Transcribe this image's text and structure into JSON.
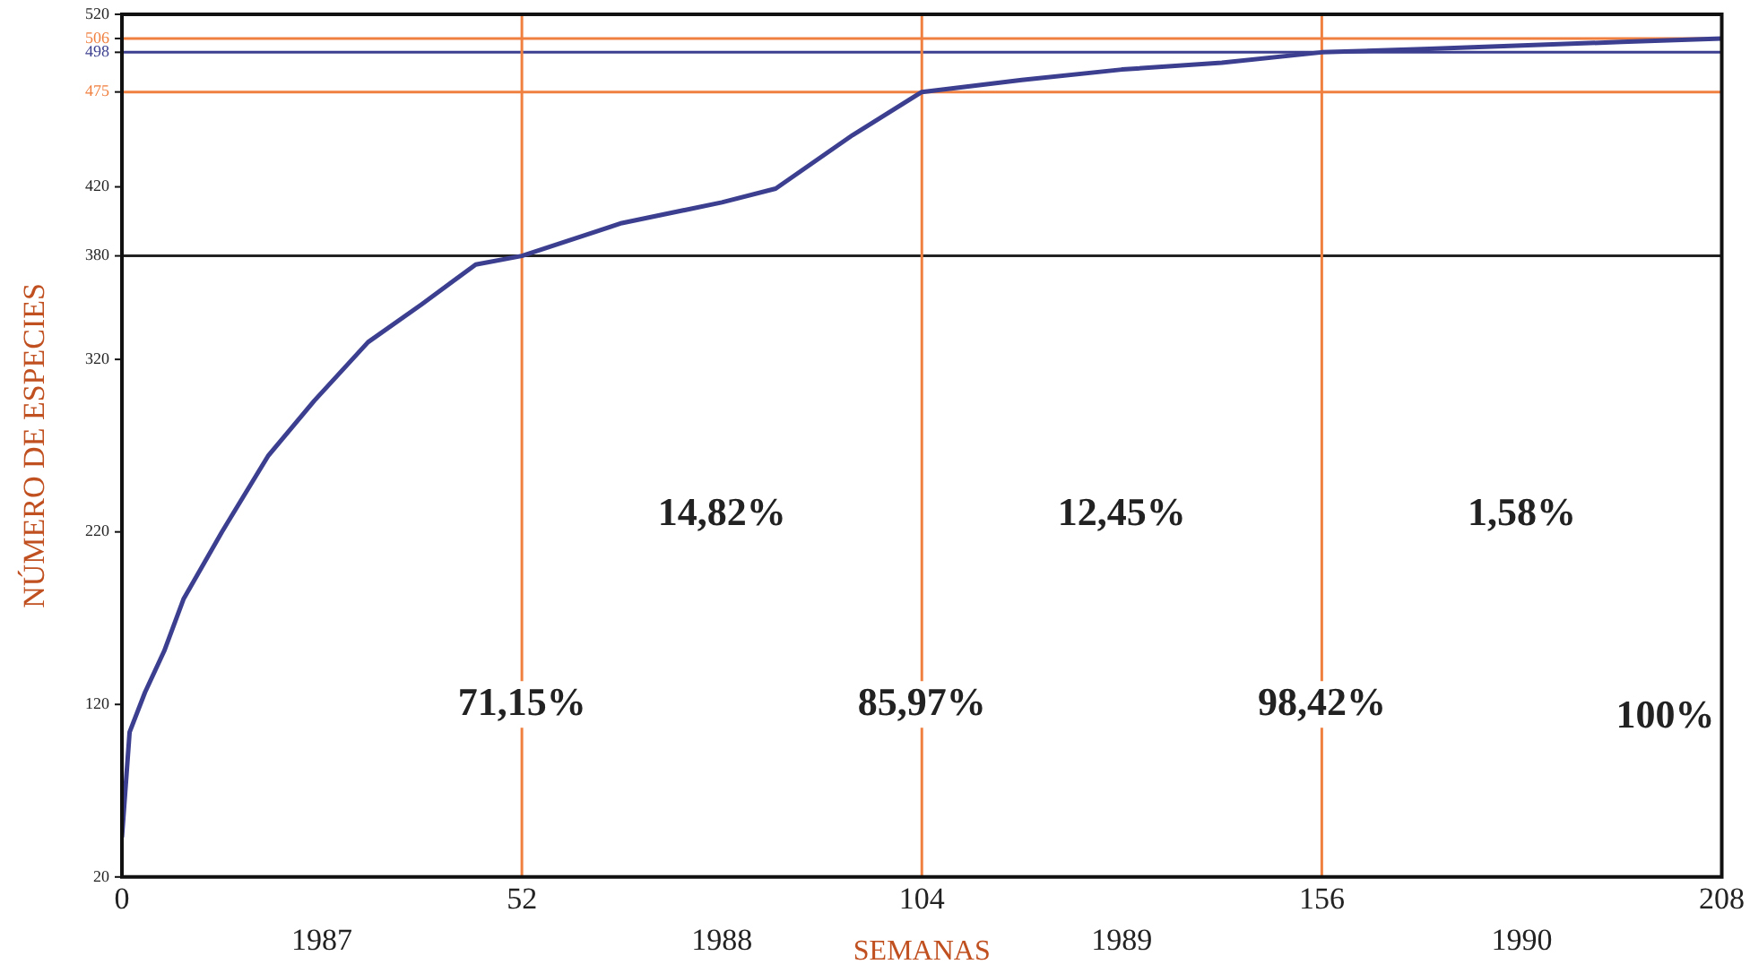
{
  "chart_data": {
    "type": "line",
    "xlabel": "SEMANAS",
    "ylabel": "NÚMERO DE ESPECIES",
    "x": [
      0,
      1,
      3,
      5.5,
      8,
      13,
      19,
      25,
      32,
      39,
      46,
      52,
      65,
      78,
      85,
      95,
      104,
      117,
      130,
      143,
      156,
      170,
      182,
      195,
      208
    ],
    "series": [
      {
        "color": "#3c3f8f",
        "values": [
          43,
          104,
          127,
          151,
          181,
          220,
          264,
          296,
          330,
          352,
          375,
          380,
          399,
          411,
          419,
          450,
          475,
          482,
          488,
          492,
          498,
          500,
          502,
          504,
          506
        ]
      }
    ],
    "xlim": [
      0,
      208
    ],
    "xticks": [
      0,
      52,
      104,
      156,
      208
    ],
    "ylim": [
      20,
      520
    ],
    "yticks": [
      20,
      120,
      220,
      320,
      380,
      420,
      475,
      498,
      506,
      520
    ],
    "ref_lines": [
      {
        "axis": "y",
        "value": 380,
        "color": "#222222"
      },
      {
        "axis": "y",
        "value": 475,
        "color": "#f08040"
      },
      {
        "axis": "y",
        "value": 498,
        "color": "#3c3f8f"
      },
      {
        "axis": "y",
        "value": 506,
        "color": "#f08040"
      },
      {
        "axis": "x",
        "value": 52,
        "color": "#f08040"
      },
      {
        "axis": "x",
        "value": 104,
        "color": "#f08040"
      },
      {
        "axis": "x",
        "value": 156,
        "color": "#f08040"
      }
    ],
    "annotations": [
      {
        "text": "71,15%",
        "x": 52,
        "y": 120
      },
      {
        "text": "85,97%",
        "x": 104,
        "y": 120
      },
      {
        "text": "98,42%",
        "x": 156,
        "y": 120
      },
      "14,82%",
      "12,45%",
      "1,58%",
      "100%",
      "1987",
      "1988",
      "1989",
      "1990"
    ],
    "legend": false,
    "grid": false,
    "marker": "none",
    "line_style": "solid"
  }
}
